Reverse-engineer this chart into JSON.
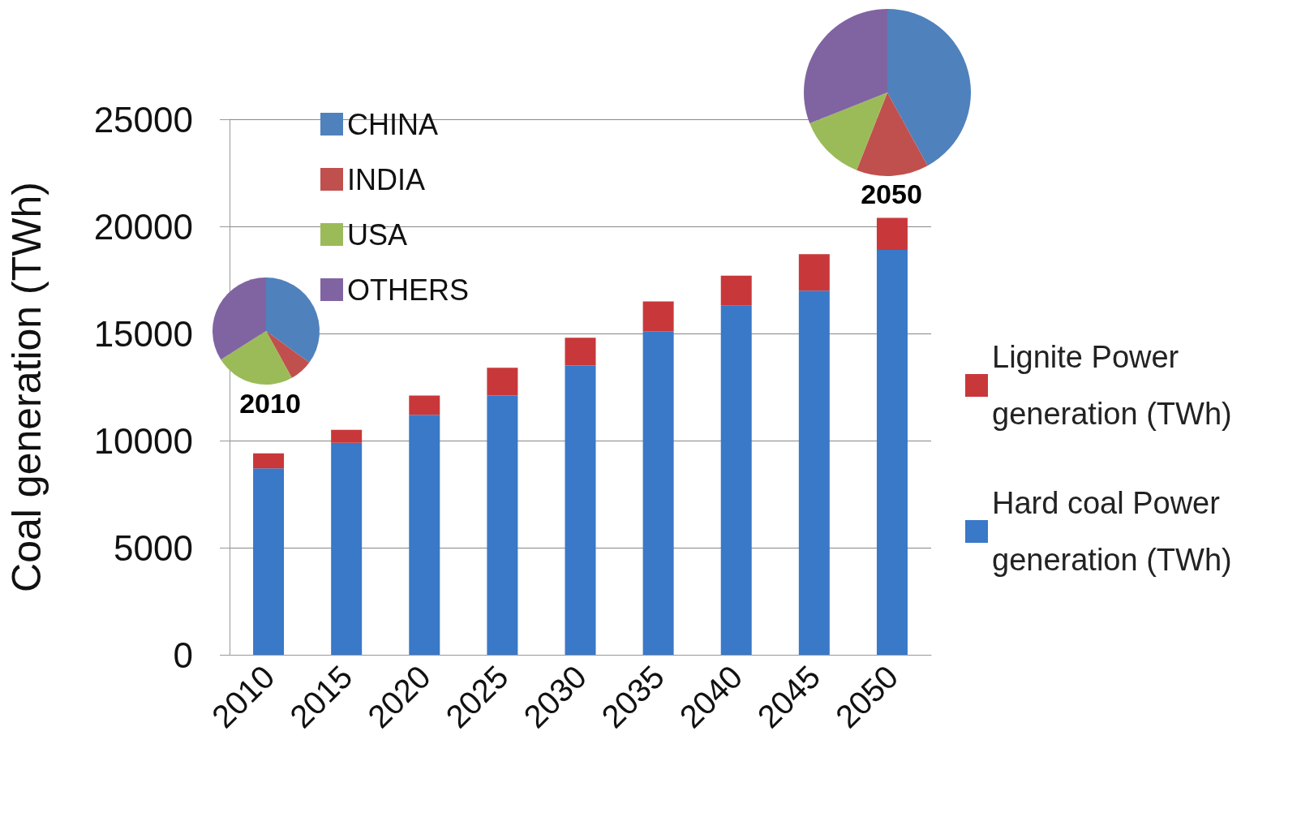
{
  "chart_data": [
    {
      "type": "bar",
      "stacked": true,
      "ylabel": "Coal generation (TWh)",
      "categories": [
        "2010",
        "2015",
        "2020",
        "2025",
        "2030",
        "2035",
        "2040",
        "2045",
        "2050"
      ],
      "series": [
        {
          "name": "Hard coal Power generation (TWh)",
          "color": "#3a78c8",
          "values": [
            8700,
            9900,
            11200,
            12100,
            13500,
            15100,
            16300,
            17000,
            18900
          ]
        },
        {
          "name": "Lignite Power generation (TWh)",
          "color": "#c8383a",
          "values": [
            700,
            600,
            900,
            1300,
            1300,
            1400,
            1400,
            1700,
            1500
          ]
        }
      ],
      "ylim": [
        0,
        25000
      ],
      "yticks": [
        0,
        5000,
        10000,
        15000,
        20000,
        25000
      ],
      "grid": "y",
      "legend": "right"
    },
    {
      "type": "pie",
      "title": "2010",
      "categories": [
        "CHINA",
        "INDIA",
        "USA",
        "OTHERS"
      ],
      "values": [
        35,
        7,
        24,
        34
      ],
      "colors": [
        "#4f81bd",
        "#c0504d",
        "#9bbb59",
        "#8064a2"
      ],
      "legend": "top right"
    },
    {
      "type": "pie",
      "title": "2050",
      "categories": [
        null,
        null,
        null,
        null
      ],
      "values": [
        42,
        14,
        13,
        31
      ],
      "colors": [
        "#4f81bd",
        "#c0504d",
        "#9bbb59",
        "#8064a2"
      ],
      "legend": false
    }
  ]
}
